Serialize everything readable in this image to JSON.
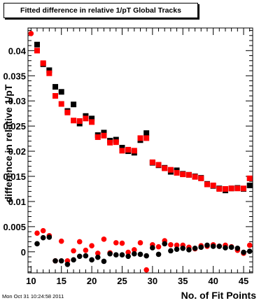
{
  "chart_data": {
    "type": "scatter",
    "title": "Fitted difference in relative 1/pT  Global Tracks",
    "xlabel": "No. of Fit Points",
    "ylabel": "difference in relative 1/pT",
    "xlim": [
      9.5,
      46.5
    ],
    "ylim": [
      -0.0042,
      0.0445
    ],
    "x_ticks": [
      10,
      15,
      20,
      25,
      30,
      35,
      40,
      45
    ],
    "x_tick_labels": [
      "10",
      "15",
      "20",
      "25",
      "30",
      "35",
      "40",
      "45"
    ],
    "y_ticks": [
      0,
      0.005,
      0.01,
      0.015,
      0.02,
      0.025,
      0.03,
      0.035,
      0.04
    ],
    "y_tick_labels": [
      "0",
      "0.005",
      "0.01",
      "0.015",
      "0.02",
      "0.025",
      "0.03",
      "0.035",
      "0.04"
    ],
    "grid": false,
    "series": [
      {
        "marker": "square",
        "color": "#000000",
        "x": [
          11,
          12,
          13,
          14,
          15,
          16,
          17,
          18,
          19,
          20,
          21,
          22,
          23,
          24,
          25,
          26,
          27,
          28,
          29,
          30,
          31,
          32,
          33,
          34,
          35,
          36,
          37,
          38,
          39,
          40,
          41,
          42,
          43,
          44,
          45,
          46
        ],
        "y": [
          0.0412,
          0.0373,
          0.0361,
          0.0328,
          0.0318,
          0.028,
          0.0293,
          0.0255,
          0.027,
          0.0265,
          0.0232,
          0.0237,
          0.0221,
          0.0223,
          0.0207,
          0.02,
          0.0197,
          0.0222,
          0.0236,
          0.0177,
          0.0172,
          0.0167,
          0.0159,
          0.0162,
          0.0155,
          0.0153,
          0.015,
          0.0147,
          0.0135,
          0.0131,
          0.0126,
          0.0122,
          0.0126,
          0.0127,
          0.0125,
          0.0132
        ]
      },
      {
        "marker": "square",
        "color": "#ff0000",
        "x": [
          11,
          12,
          13,
          14,
          15,
          16,
          17,
          18,
          19,
          20,
          21,
          22,
          23,
          24,
          25,
          26,
          27,
          28,
          29,
          30,
          31,
          32,
          33,
          34,
          35,
          36,
          37,
          38,
          39,
          40,
          41,
          42,
          43,
          44,
          45,
          46
        ],
        "y": [
          0.04,
          0.0375,
          0.0355,
          0.031,
          0.0294,
          0.0277,
          0.0261,
          0.026,
          0.0265,
          0.0258,
          0.0228,
          0.0231,
          0.0217,
          0.0218,
          0.0201,
          0.0203,
          0.0201,
          0.0226,
          0.0226,
          0.0178,
          0.0173,
          0.0166,
          0.0163,
          0.0157,
          0.0154,
          0.0153,
          0.0149,
          0.0146,
          0.0134,
          0.0132,
          0.0125,
          0.0125,
          0.0126,
          0.0126,
          0.0126,
          0.0146
        ]
      },
      {
        "marker": "circle",
        "color": "#ff0000",
        "x": [
          10,
          11,
          12,
          13,
          14,
          15,
          16,
          17,
          18,
          19,
          20,
          21,
          22,
          23,
          24,
          25,
          26,
          27,
          28,
          29,
          30,
          31,
          32,
          33,
          34,
          35,
          36,
          37,
          38,
          39,
          40,
          41,
          42,
          43,
          44,
          45,
          46
        ],
        "y": [
          0.0434,
          0.0037,
          0.0042,
          0.0032,
          -0.0018,
          0.0021,
          -0.0018,
          0.0002,
          0.002,
          0.0003,
          0.0012,
          -0.0003,
          0.0025,
          -0.0002,
          0.0018,
          0.0017,
          -0.0001,
          0.0004,
          0.0018,
          -0.0036,
          0.0014,
          0.001,
          0.0022,
          0.0014,
          0.0013,
          0.0013,
          0.0009,
          0.0006,
          0.0012,
          0.0011,
          0.0014,
          0.0011,
          0.0013,
          0.001,
          0.0003,
          -0.0003,
          0.0013
        ]
      },
      {
        "marker": "circle",
        "color": "#000000",
        "x": [
          11,
          12,
          13,
          14,
          15,
          16,
          17,
          18,
          19,
          20,
          21,
          22,
          23,
          24,
          25,
          26,
          27,
          28,
          29,
          30,
          31,
          32,
          33,
          34,
          35,
          36,
          37,
          38,
          39,
          40,
          41,
          42,
          43,
          44,
          45,
          46
        ],
        "y": [
          0.0016,
          0.0028,
          0.0029,
          -0.0018,
          -0.0018,
          -0.0025,
          -0.0016,
          -0.0009,
          -0.0008,
          -0.0016,
          -0.0011,
          -0.0019,
          -0.0004,
          -0.0006,
          -0.0006,
          -0.0009,
          -0.0004,
          -0.0005,
          -0.0008,
          0.0008,
          -0.0005,
          0.0016,
          0.0002,
          0.0005,
          0.0007,
          0.0004,
          0.0007,
          0.0009,
          0.0013,
          0.0011,
          0.0011,
          0.0008,
          0.0009,
          0.0007,
          -0.0001,
          0.0001
        ]
      }
    ]
  },
  "footer": {
    "timestamp": "Mon Oct 31 10:24:58 2011"
  }
}
